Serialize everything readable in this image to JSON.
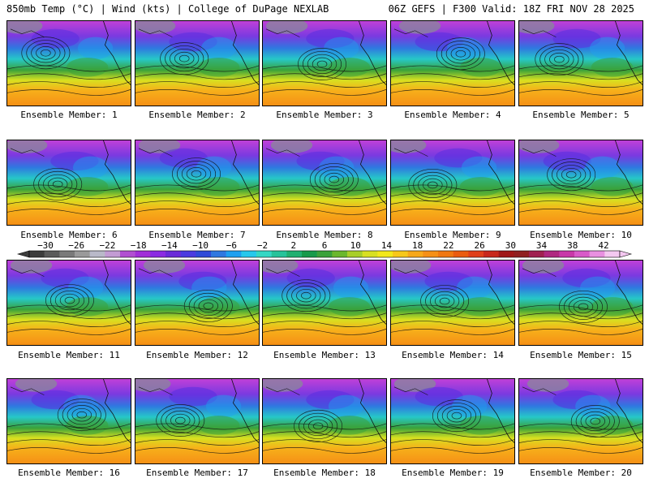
{
  "header": {
    "left": "850mb Temp (°C) | Wind (kts) | College of DuPage NEXLAB",
    "right": "06Z GEFS | F300 Valid: 18Z FRI NOV 28 2025"
  },
  "panels": [
    {
      "label": "Ensemble Member: 1"
    },
    {
      "label": "Ensemble Member: 2"
    },
    {
      "label": "Ensemble Member: 3"
    },
    {
      "label": "Ensemble Member: 4"
    },
    {
      "label": "Ensemble Member: 5"
    },
    {
      "label": "Ensemble Member: 6"
    },
    {
      "label": "Ensemble Member: 7"
    },
    {
      "label": "Ensemble Member: 8"
    },
    {
      "label": "Ensemble Member: 9"
    },
    {
      "label": "Ensemble Member: 10"
    },
    {
      "label": "Ensemble Member: 11"
    },
    {
      "label": "Ensemble Member: 12"
    },
    {
      "label": "Ensemble Member: 13"
    },
    {
      "label": "Ensemble Member: 14"
    },
    {
      "label": "Ensemble Member: 15"
    },
    {
      "label": "Ensemble Member: 16"
    },
    {
      "label": "Ensemble Member: 17"
    },
    {
      "label": "Ensemble Member: 18"
    },
    {
      "label": "Ensemble Member: 19"
    },
    {
      "label": "Ensemble Member: 20"
    }
  ],
  "colorbar": {
    "tick_labels": [
      "−30",
      "−26",
      "−22",
      "−18",
      "−14",
      "−10",
      "−6",
      "−2",
      "2",
      "6",
      "10",
      "14",
      "18",
      "22",
      "26",
      "30",
      "34",
      "38",
      "42"
    ],
    "colors": [
      "#3c3c3c",
      "#5a5a5a",
      "#7a7a7a",
      "#9a9a9a",
      "#b9b9c8",
      "#c39bd3",
      "#b14fd1",
      "#a12fd8",
      "#8b2be2",
      "#6a2bd8",
      "#4b3be0",
      "#2f4bd8",
      "#2f78e0",
      "#1ea0f0",
      "#26c8ec",
      "#35d7c4",
      "#27c39a",
      "#20b070",
      "#179a4a",
      "#3aa23a",
      "#6ab82c",
      "#a8cf28",
      "#d8e020",
      "#f2e81a",
      "#f7c81a",
      "#f7a81a",
      "#f59016",
      "#f07812",
      "#ea5c10",
      "#e0401a",
      "#c8281c",
      "#a01818",
      "#902020",
      "#a02050",
      "#b02880",
      "#c838a8",
      "#d85ac8",
      "#e890e0",
      "#f4c8f0"
    ]
  }
}
